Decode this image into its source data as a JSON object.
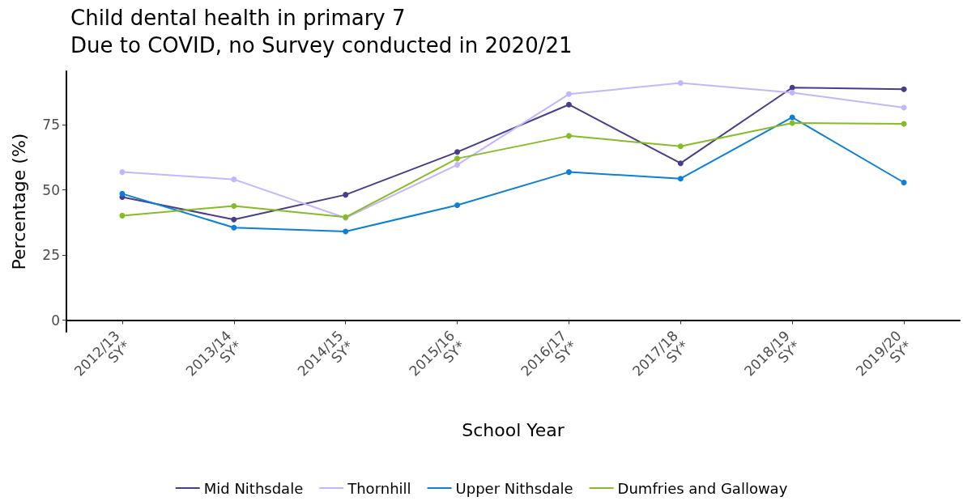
{
  "chart_data": {
    "type": "line",
    "title": "Child dental health in primary 7",
    "subtitle": "Due to COVID, no Survey conducted in 2020/21",
    "xlabel": "School Year",
    "ylabel": "Percentage (%)",
    "categories": [
      "2012/13\nSY*",
      "2013/14\nSY*",
      "2014/15\nSY*",
      "2015/16\nSY*",
      "2016/17\nSY*",
      "2017/18\nSY*",
      "2018/19\nSY*",
      "2019/20\nSY*"
    ],
    "series": [
      {
        "name": "Mid Nithsdale",
        "color": "#483d8b",
        "values": [
          47.2,
          38.6,
          48.1,
          64.5,
          82.7,
          60.2,
          89.2,
          88.6
        ]
      },
      {
        "name": "Thornhill",
        "color": "#c4b5fd",
        "values": [
          56.8,
          54.0,
          39.2,
          59.6,
          86.7,
          91.0,
          87.3,
          81.5
        ]
      },
      {
        "name": "Upper Nithsdale",
        "color": "#0b7fd9",
        "values": [
          48.5,
          35.5,
          34.0,
          44.1,
          56.8,
          54.3,
          77.8,
          52.8
        ]
      },
      {
        "name": "Dumfries and Galloway",
        "color": "#86bc25",
        "values": [
          40.1,
          43.8,
          39.5,
          62.0,
          70.7,
          66.7,
          75.6,
          75.3
        ]
      }
    ],
    "ylim": [
      -4.5,
      95.5
    ],
    "yticks": [
      0,
      25,
      50,
      75
    ],
    "grid": false,
    "legend": "bottom",
    "marker": "circle",
    "line_style": "solid"
  }
}
